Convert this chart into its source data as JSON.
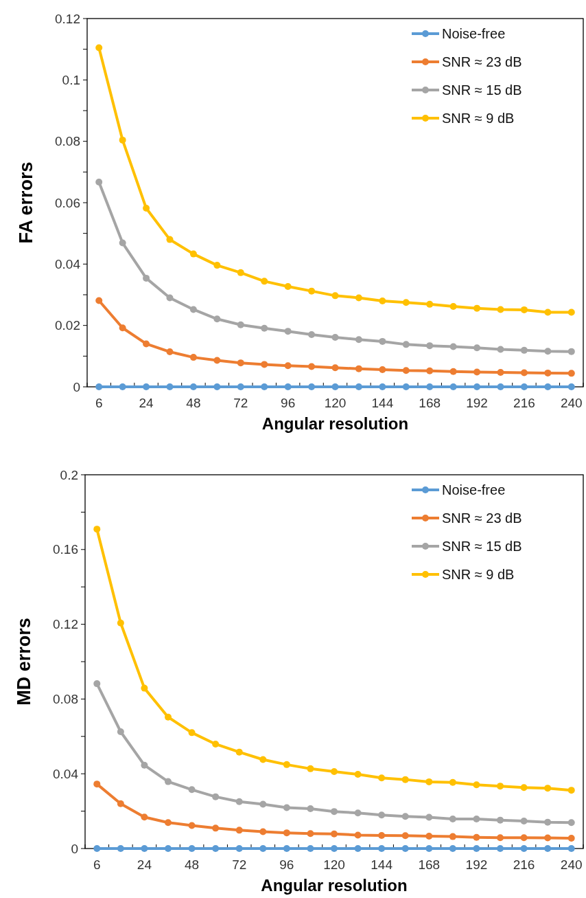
{
  "chart_data": [
    {
      "type": "line",
      "xlabel": "Angular resolution",
      "ylabel": "FA errors",
      "categories": [
        "6",
        null,
        "24",
        null,
        "48",
        null,
        "72",
        null,
        "96",
        null,
        "120",
        null,
        "144",
        null,
        "168",
        null,
        "192",
        null,
        "216",
        null,
        "240"
      ],
      "series": [
        {
          "name": "Noise-free",
          "color": "#5b9bd5",
          "values": [
            0,
            0,
            0,
            0,
            0,
            0,
            0,
            0,
            0,
            0,
            0,
            0,
            0,
            0,
            0,
            0,
            0,
            0,
            0,
            0,
            0
          ]
        },
        {
          "name": "SNR ≈ 23 dB",
          "color": "#ed7d31",
          "values": [
            0.0281,
            0.0192,
            0.014,
            0.0114,
            0.0096,
            0.0086,
            0.0078,
            0.0073,
            0.0069,
            0.0066,
            0.0062,
            0.0059,
            0.0056,
            0.0053,
            0.0052,
            0.005,
            0.0048,
            0.0047,
            0.0046,
            0.0045,
            0.0044
          ]
        },
        {
          "name": "SNR ≈ 15 dB",
          "color": "#a5a5a5",
          "values": [
            0.0667,
            0.0469,
            0.0354,
            0.029,
            0.0252,
            0.0221,
            0.0202,
            0.0191,
            0.0181,
            0.017,
            0.0161,
            0.0154,
            0.0148,
            0.0138,
            0.0134,
            0.0131,
            0.0127,
            0.0122,
            0.0119,
            0.0116,
            0.0115
          ]
        },
        {
          "name": "SNR ≈ 9 dB",
          "color": "#ffc000",
          "values": [
            0.1105,
            0.0804,
            0.0582,
            0.048,
            0.0433,
            0.0396,
            0.0372,
            0.0344,
            0.0327,
            0.0312,
            0.0297,
            0.029,
            0.028,
            0.0275,
            0.0269,
            0.0262,
            0.0256,
            0.0252,
            0.0251,
            0.0243,
            0.0243
          ]
        }
      ],
      "ylim": [
        0,
        0.12
      ],
      "yticks": [
        0,
        {
          "value": 0.01,
          "label": null
        },
        0.02,
        {
          "value": 0.03,
          "label": null
        },
        0.04,
        {
          "value": 0.05,
          "label": null
        },
        0.06,
        {
          "value": 0.07,
          "label": null
        },
        0.08,
        {
          "value": 0.09,
          "label": null
        },
        {
          "value": 0.1,
          "label": "0.1"
        },
        {
          "value": 0.11,
          "label": null
        },
        0.12
      ],
      "grid": false,
      "legend": "top right",
      "marker": "circle",
      "line_style": "solid"
    },
    {
      "type": "line",
      "xlabel": "Angular resolution",
      "ylabel": "MD errors",
      "categories": [
        "6",
        null,
        "24",
        null,
        "48",
        null,
        "72",
        null,
        "96",
        null,
        "120",
        null,
        "144",
        null,
        "168",
        null,
        "192",
        null,
        "216",
        null,
        "240"
      ],
      "series": [
        {
          "name": "Noise-free",
          "color": "#5b9bd5",
          "values": [
            0,
            0,
            0,
            0,
            0,
            0,
            0,
            0,
            0,
            0,
            0,
            0,
            0,
            0,
            0,
            0,
            0,
            0,
            0,
            0,
            0
          ]
        },
        {
          "name": "SNR ≈ 23 dB",
          "color": "#ed7d31",
          "values": [
            0.0345,
            0.024,
            0.0168,
            0.0139,
            0.0123,
            0.0109,
            0.0098,
            0.009,
            0.0084,
            0.008,
            0.0078,
            0.0072,
            0.007,
            0.0069,
            0.0066,
            0.0064,
            0.006,
            0.0058,
            0.0058,
            0.0057,
            0.0055
          ]
        },
        {
          "name": "SNR ≈ 15 dB",
          "color": "#a5a5a5",
          "values": [
            0.0882,
            0.0625,
            0.0446,
            0.0358,
            0.0315,
            0.0277,
            0.0251,
            0.0237,
            0.0219,
            0.0213,
            0.0198,
            0.019,
            0.0179,
            0.0172,
            0.0167,
            0.0158,
            0.0158,
            0.0152,
            0.0147,
            0.0141,
            0.0139
          ]
        },
        {
          "name": "SNR ≈ 9 dB",
          "color": "#ffc000",
          "values": [
            0.1709,
            0.1207,
            0.0858,
            0.0703,
            0.062,
            0.0559,
            0.0516,
            0.0476,
            0.0449,
            0.0427,
            0.0412,
            0.0397,
            0.0378,
            0.0369,
            0.0357,
            0.0354,
            0.0341,
            0.0334,
            0.0326,
            0.0323,
            0.0312
          ]
        }
      ],
      "ylim": [
        0,
        0.2
      ],
      "yticks": [
        0,
        {
          "value": 0.02,
          "label": null
        },
        0.04,
        {
          "value": 0.06,
          "label": null
        },
        0.08,
        {
          "value": 0.1,
          "label": null
        },
        0.12,
        {
          "value": 0.14,
          "label": null
        },
        0.16,
        {
          "value": 0.18,
          "label": null
        },
        {
          "value": 0.2,
          "label": "0.2"
        }
      ],
      "grid": false,
      "legend": "top right",
      "marker": "circle",
      "line_style": "solid"
    }
  ]
}
